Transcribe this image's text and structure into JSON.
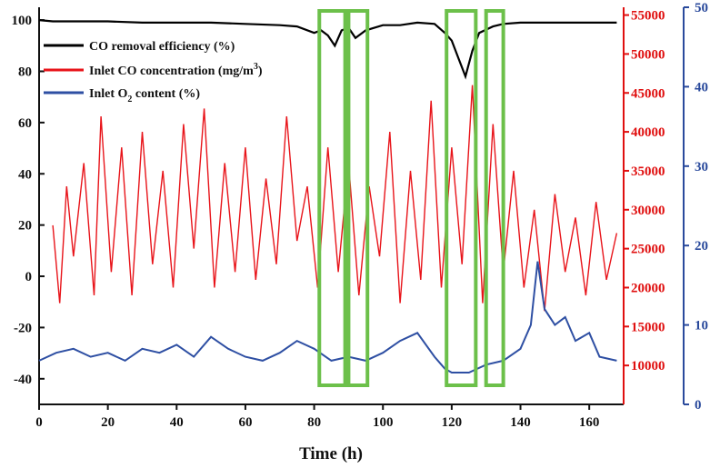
{
  "chart_data": {
    "type": "line",
    "title": "",
    "xlabel": "Time (h)",
    "xlim": [
      0,
      170
    ],
    "x_ticks": [
      "0",
      "20",
      "40",
      "60",
      "80",
      "100",
      "120",
      "140",
      "160"
    ],
    "axes": {
      "left": {
        "unit": "%",
        "ylim": [
          -50,
          105
        ],
        "ticks": [
          "-40",
          "-20",
          "0",
          "20",
          "40",
          "60",
          "80",
          "100"
        ]
      },
      "right_red": {
        "unit": "mg/m3",
        "ylim": [
          5000,
          56000
        ],
        "ticks": [
          "10000",
          "15000",
          "20000",
          "25000",
          "30000",
          "35000",
          "40000",
          "45000",
          "50000",
          "55000"
        ]
      },
      "right_blue": {
        "unit": "%",
        "ylim": [
          0,
          50
        ],
        "ticks": [
          "0",
          "10",
          "20",
          "30",
          "40",
          "50"
        ]
      }
    },
    "legend": {
      "position": "top-left",
      "entries": [
        {
          "label": "CO removal efficiency (%)",
          "color": "#000000"
        },
        {
          "label": "Inlet CO concentration (mg/m3)",
          "color": "#e8141a",
          "display_prefix": "Inlet CO concentration (mg/m",
          "display_sup": "3",
          "display_suffix": ")"
        },
        {
          "label": "Inlet O2 content (%)",
          "color": "#2e4fa3",
          "display_prefix": "Inlet O",
          "display_sub": "2",
          "display_suffix": " content (%)"
        }
      ]
    },
    "series": [
      {
        "name": "CO removal efficiency (%)",
        "axis": "left",
        "color": "#000000",
        "x": [
          0,
          4,
          10,
          20,
          30,
          40,
          50,
          60,
          70,
          75,
          80,
          82,
          84,
          86,
          88,
          90,
          92,
          95,
          100,
          105,
          110,
          115,
          118,
          120,
          122,
          124,
          126,
          128,
          132,
          135,
          140,
          150,
          160,
          168
        ],
        "values": [
          100,
          99.5,
          99.5,
          99.5,
          99,
          99,
          99,
          98.5,
          98,
          97.5,
          95,
          96,
          94,
          90,
          96,
          97,
          93,
          96,
          98,
          98,
          99,
          98.5,
          95,
          92,
          85,
          78,
          88,
          95,
          97.5,
          98.5,
          99,
          99,
          99,
          99
        ]
      },
      {
        "name": "Inlet CO concentration (mg/m3)",
        "axis": "right_red",
        "color": "#e8141a",
        "x": [
          4,
          6,
          8,
          10,
          13,
          16,
          18,
          21,
          24,
          27,
          30,
          33,
          36,
          39,
          42,
          45,
          48,
          51,
          54,
          57,
          60,
          63,
          66,
          69,
          72,
          75,
          78,
          81,
          84,
          87,
          90,
          93,
          96,
          99,
          102,
          105,
          108,
          111,
          114,
          117,
          120,
          123,
          126,
          129,
          132,
          135,
          138,
          141,
          144,
          147,
          150,
          153,
          156,
          159,
          162,
          165,
          168
        ],
        "values": [
          28000,
          18000,
          33000,
          24000,
          36000,
          19000,
          42000,
          22000,
          38000,
          19000,
          40000,
          23000,
          35000,
          20000,
          41000,
          25000,
          43000,
          20000,
          36000,
          22000,
          38000,
          21000,
          34000,
          23000,
          42000,
          26000,
          33000,
          20000,
          38000,
          22000,
          36000,
          19000,
          33000,
          24000,
          40000,
          18000,
          35000,
          21000,
          44000,
          20000,
          38000,
          23000,
          46000,
          18000,
          41000,
          22000,
          35000,
          20000,
          30000,
          17000,
          32000,
          22000,
          29000,
          19000,
          31000,
          21000,
          27000
        ]
      },
      {
        "name": "Inlet O2 content (%)",
        "axis": "right_blue",
        "color": "#2e4fa3",
        "x": [
          0,
          5,
          10,
          15,
          20,
          25,
          30,
          35,
          40,
          45,
          50,
          55,
          60,
          65,
          70,
          75,
          80,
          85,
          90,
          95,
          100,
          105,
          110,
          115,
          118,
          120,
          125,
          130,
          135,
          140,
          143,
          145,
          147,
          150,
          153,
          156,
          160,
          163,
          168
        ],
        "values": [
          5.5,
          6.5,
          7,
          6,
          6.5,
          5.5,
          7,
          6.5,
          7.5,
          6,
          8.5,
          7,
          6,
          5.5,
          6.5,
          8,
          7,
          5.5,
          6,
          5.5,
          6.5,
          8,
          9,
          6,
          4.5,
          4,
          4,
          5,
          5.5,
          7,
          10,
          18,
          12,
          10,
          11,
          8,
          9,
          6,
          5.5
        ]
      }
    ],
    "annotations": {
      "highlight_boxes_color": "#6cc04a",
      "highlight_boxes_x_ranges": [
        [
          81.5,
          89
        ],
        [
          90,
          95.5
        ],
        [
          118.5,
          127
        ],
        [
          130,
          135
        ]
      ]
    }
  }
}
